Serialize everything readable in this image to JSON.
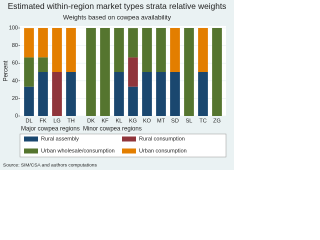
{
  "chart_data": {
    "type": "stacked-bar",
    "title": "Estimated within-region market types strata relative weights",
    "subtitle": "Weights based on cowpea availability",
    "y_label": "Percent",
    "groups": [
      {
        "name": "Major cowpea regions",
        "categories": [
          "DL",
          "FK",
          "LG",
          "TH"
        ]
      },
      {
        "name": "Minor cowpea regions",
        "categories": [
          "DK",
          "KF",
          "KL",
          "KG",
          "KO",
          "MT",
          "SD",
          "SL",
          "TC",
          "ZG"
        ]
      }
    ],
    "series": [
      {
        "name": "Rural assembly",
        "color": "#1a476f",
        "values": [
          33.3,
          50,
          0,
          50,
          0,
          0,
          50,
          33.3,
          50,
          50,
          50,
          0,
          50,
          0
        ]
      },
      {
        "name": "Rural consumption",
        "color": "#90353b",
        "values": [
          0,
          0,
          50,
          0,
          0,
          0,
          0,
          33.3,
          0,
          0,
          0,
          0,
          0,
          0
        ]
      },
      {
        "name": "Urban wholesale/consumption",
        "color": "#55752f",
        "values": [
          33.3,
          16.7,
          0,
          0,
          100,
          100,
          50,
          33.3,
          50,
          50,
          0,
          100,
          0,
          100
        ]
      },
      {
        "name": "Urban consumption",
        "color": "#e37e00",
        "values": [
          33.3,
          33.3,
          50,
          50,
          0,
          0,
          0,
          0,
          0,
          0,
          50,
          0,
          50,
          0
        ]
      }
    ],
    "ylim": [
      0,
      100
    ],
    "yticks": [
      0,
      20,
      40,
      60,
      80,
      100
    ],
    "grid": true,
    "note": "Source: SIM/CSA and authors computations"
  }
}
